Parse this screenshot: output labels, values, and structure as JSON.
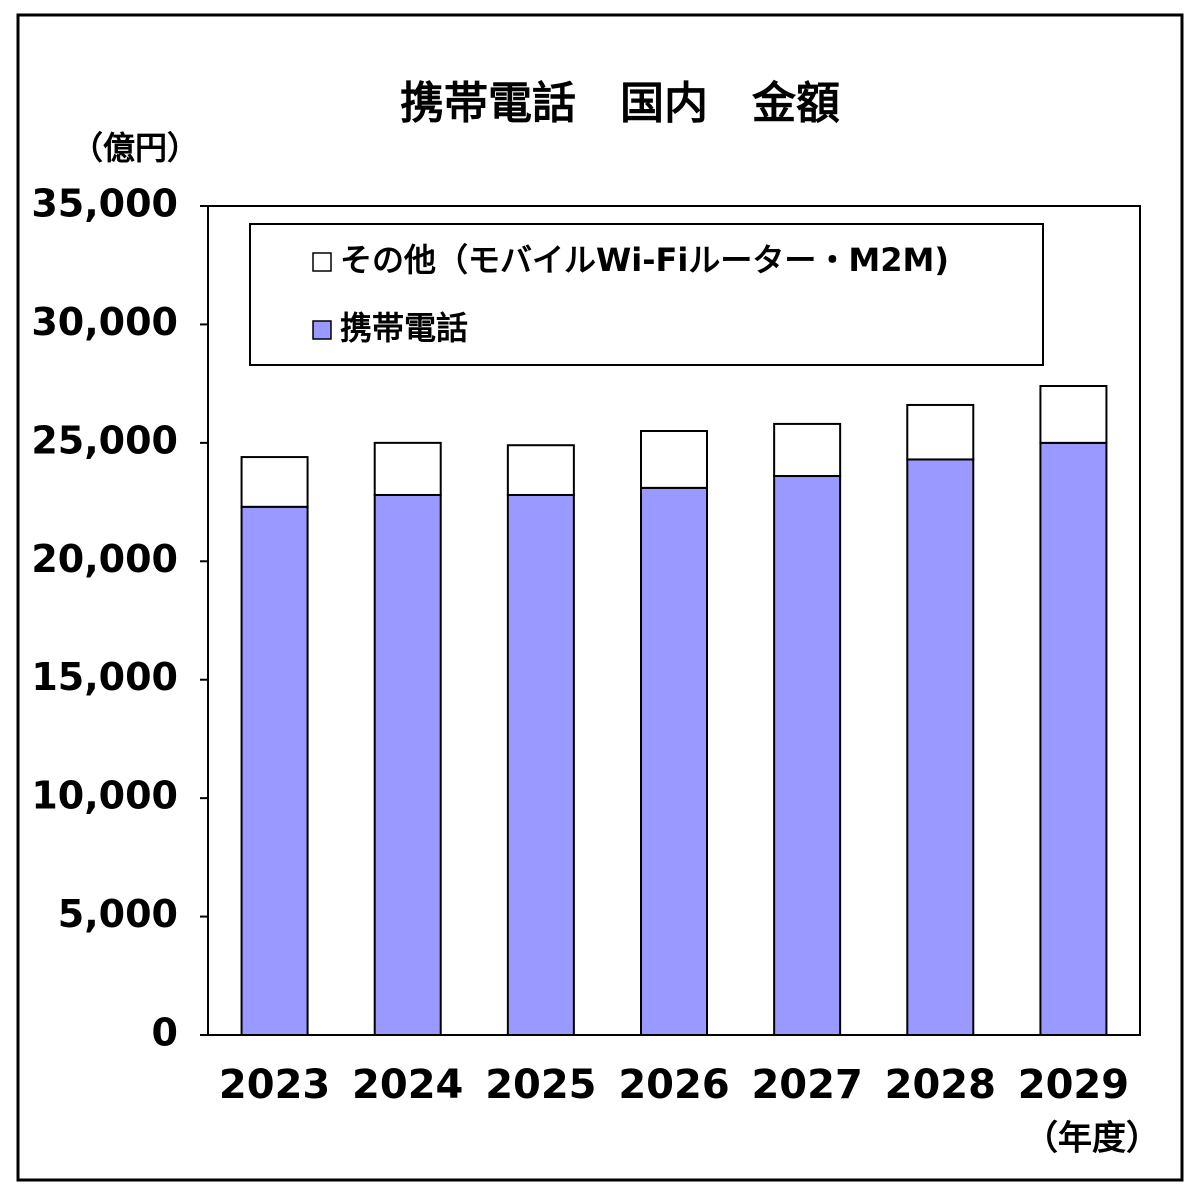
{
  "chart_data": {
    "type": "stacked-bar",
    "title": "携帯電話　国内　金額",
    "y_label": "（億円）",
    "x_label": "（年度）",
    "categories": [
      "2023",
      "2024",
      "2025",
      "2026",
      "2027",
      "2028",
      "2029"
    ],
    "series": [
      {
        "name": "携帯電話",
        "color": "#9999ff",
        "values": [
          22300,
          22800,
          22800,
          23100,
          23600,
          24300,
          25000
        ]
      },
      {
        "name": "その他（モバイルWi-Fiルーター・M2M)",
        "color": "#ffffff",
        "values": [
          2100,
          2200,
          2100,
          2400,
          2200,
          2300,
          2400
        ]
      }
    ],
    "ylim": [
      0,
      35000
    ],
    "yticks": [
      0,
      {
        "value": 5000,
        "label": "5,000"
      },
      {
        "value": 10000,
        "label": "10,000"
      },
      {
        "value": 15000,
        "label": "15,000"
      },
      {
        "value": 20000,
        "label": "20,000"
      },
      {
        "value": 25000,
        "label": "25,000"
      },
      {
        "value": 30000,
        "label": "30,000"
      },
      {
        "value": 35000,
        "label": "35,000"
      }
    ],
    "grid": false
  }
}
